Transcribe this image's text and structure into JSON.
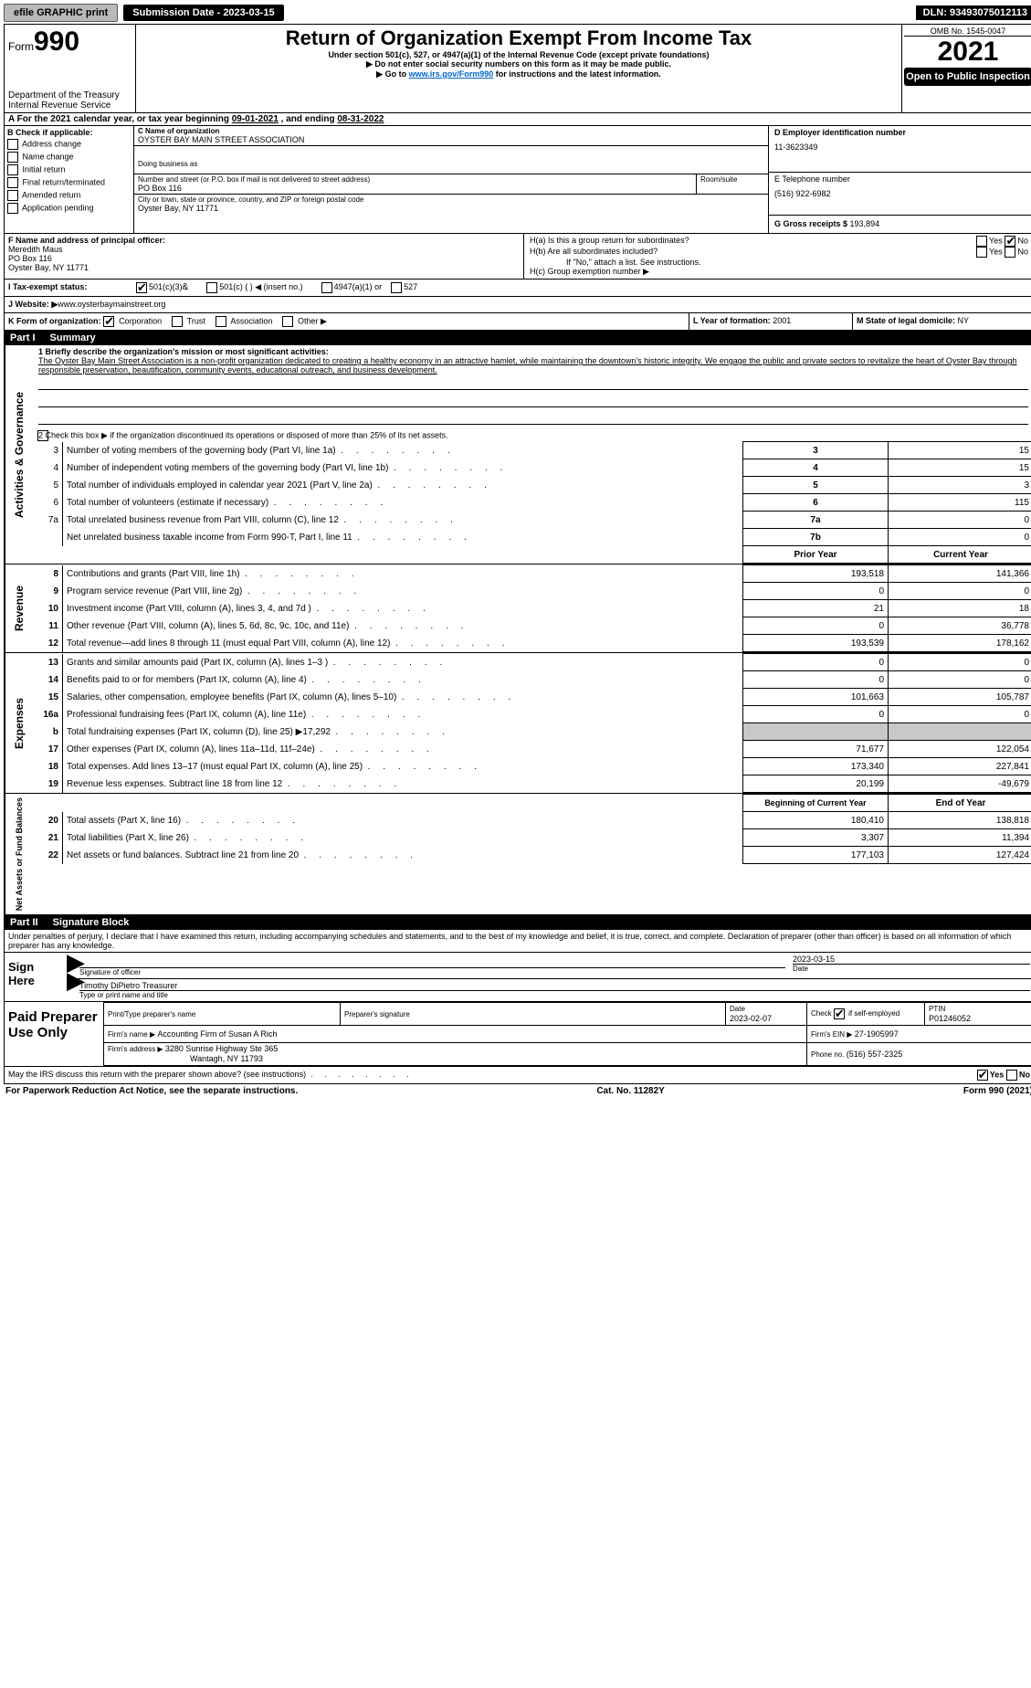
{
  "topbar": {
    "efile_label": "efile GRAPHIC print",
    "submission_label": "Submission Date - 2023-03-15",
    "dln_label": "DLN: 93493075012113"
  },
  "header": {
    "form_word": "Form",
    "form_num": "990",
    "dept": "Department of the Treasury",
    "irs": "Internal Revenue Service",
    "title": "Return of Organization Exempt From Income Tax",
    "sub1": "Under section 501(c), 527, or 4947(a)(1) of the Internal Revenue Code (except private foundations)",
    "sub2": "▶ Do not enter social security numbers on this form as it may be made public.",
    "sub3": "▶ Go to ",
    "sub3_link": "www.irs.gov/Form990",
    "sub3_tail": " for instructions and the latest information.",
    "omb": "OMB No. 1545-0047",
    "year": "2021",
    "open_pub": "Open to Public Inspection"
  },
  "periodA": {
    "label_a": "A For the 2021 calendar year, or tax year beginning ",
    "begin": "09-01-2021",
    "mid": "   , and ending ",
    "end": "08-31-2022"
  },
  "boxB": {
    "label": "B Check if applicable:",
    "items": [
      "Address change",
      "Name change",
      "Initial return",
      "Final return/terminated",
      "Amended return",
      "Application pending"
    ]
  },
  "boxC": {
    "label": "C Name of organization",
    "name": "OYSTER BAY MAIN STREET ASSOCIATION",
    "dba_label": "Doing business as",
    "street_label": "Number and street (or P.O. box if mail is not delivered to street address)",
    "room_label": "Room/suite",
    "street": "PO Box 116",
    "city_label": "City or town, state or province, country, and ZIP or foreign postal code",
    "city": "Oyster Bay, NY  11771"
  },
  "boxD": {
    "label": "D Employer identification number",
    "value": "11-3623349"
  },
  "boxE": {
    "label": "E Telephone number",
    "value": "(516) 922-6982"
  },
  "boxG": {
    "label": "G Gross receipts $ ",
    "value": "193,894"
  },
  "boxF": {
    "label": "F Name and address of principal officer:",
    "name": "Meredith Maus",
    "addr1": "PO Box 116",
    "addr2": "Oyster Bay, NY  11771"
  },
  "boxH": {
    "a_label": "H(a)  Is this a group return for subordinates?",
    "b_label": "H(b)  Are all subordinates included?",
    "note": "If \"No,\" attach a list. See instructions.",
    "c_label": "H(c)  Group exemption number ▶",
    "yes": "Yes",
    "no": "No"
  },
  "boxI": {
    "label": "I  Tax-exempt status:",
    "opt1": "501(c)(3)",
    "opt2": "501(c) (  ) ◀ (insert no.)",
    "opt3": "4947(a)(1) or",
    "opt4": "527"
  },
  "boxJ": {
    "label": "J  Website: ▶",
    "value": "  www.oysterbaymainstreet.org"
  },
  "boxK": {
    "label": "K Form of organization:",
    "opt1": "Corporation",
    "opt2": "Trust",
    "opt3": "Association",
    "opt4": "Other ▶"
  },
  "boxL": {
    "label": "L Year of formation: ",
    "value": "2001"
  },
  "boxM": {
    "label": "M State of legal domicile: ",
    "value": "NY"
  },
  "part1": {
    "hdr_num": "Part I",
    "hdr_txt": "Summary",
    "line1_label": "1  Briefly describe the organization's mission or most significant activities:",
    "mission": "The Oyster Bay Main Street Association is a non-profit organization dedicated to creating a healthy economy in an attractive hamlet, while maintaining the downtown's historic integrity. We engage the public and private sectors to revitalize the heart of Oyster Bay through responsible preservation, beautification, community events, educational outreach, and business development.",
    "line2": "2   Check this box ▶        if the organization discontinued its operations or disposed of more than 25% of its net assets.",
    "gov_rows": [
      {
        "n": "3",
        "t": "Number of voting members of the governing body (Part VI, line 1a)",
        "box": "3",
        "v": "15"
      },
      {
        "n": "4",
        "t": "Number of independent voting members of the governing body (Part VI, line 1b)",
        "box": "4",
        "v": "15"
      },
      {
        "n": "5",
        "t": "Total number of individuals employed in calendar year 2021 (Part V, line 2a)",
        "box": "5",
        "v": "3"
      },
      {
        "n": "6",
        "t": "Total number of volunteers (estimate if necessary)",
        "box": "6",
        "v": "115"
      },
      {
        "n": "7a",
        "t": "Total unrelated business revenue from Part VIII, column (C), line 12",
        "box": "7a",
        "v": "0"
      },
      {
        "n": "",
        "t": "Net unrelated business taxable income from Form 990-T, Part I, line 11",
        "box": "7b",
        "v": "0"
      }
    ],
    "col_prior": "Prior Year",
    "col_curr": "Current Year",
    "rev_rows": [
      {
        "n": "8",
        "t": "Contributions and grants (Part VIII, line 1h)",
        "p": "193,518",
        "c": "141,366"
      },
      {
        "n": "9",
        "t": "Program service revenue (Part VIII, line 2g)",
        "p": "0",
        "c": "0"
      },
      {
        "n": "10",
        "t": "Investment income (Part VIII, column (A), lines 3, 4, and 7d )",
        "p": "21",
        "c": "18"
      },
      {
        "n": "11",
        "t": "Other revenue (Part VIII, column (A), lines 5, 6d, 8c, 9c, 10c, and 11e)",
        "p": "0",
        "c": "36,778"
      },
      {
        "n": "12",
        "t": "Total revenue—add lines 8 through 11 (must equal Part VIII, column (A), line 12)",
        "p": "193,539",
        "c": "178,162"
      }
    ],
    "exp_rows": [
      {
        "n": "13",
        "t": "Grants and similar amounts paid (Part IX, column (A), lines 1–3 )",
        "p": "0",
        "c": "0"
      },
      {
        "n": "14",
        "t": "Benefits paid to or for members (Part IX, column (A), line 4)",
        "p": "0",
        "c": "0"
      },
      {
        "n": "15",
        "t": "Salaries, other compensation, employee benefits (Part IX, column (A), lines 5–10)",
        "p": "101,663",
        "c": "105,787"
      },
      {
        "n": "16a",
        "t": "Professional fundraising fees (Part IX, column (A), line 11e)",
        "p": "0",
        "c": "0"
      },
      {
        "n": "b",
        "t": "Total fundraising expenses (Part IX, column (D), line 25) ▶17,292",
        "p": "",
        "c": "",
        "grey": true
      },
      {
        "n": "17",
        "t": "Other expenses (Part IX, column (A), lines 11a–11d, 11f–24e)",
        "p": "71,677",
        "c": "122,054"
      },
      {
        "n": "18",
        "t": "Total expenses. Add lines 13–17 (must equal Part IX, column (A), line 25)",
        "p": "173,340",
        "c": "227,841"
      },
      {
        "n": "19",
        "t": "Revenue less expenses. Subtract line 18 from line 12",
        "p": "20,199",
        "c": "-49,679"
      }
    ],
    "col_begin": "Beginning of Current Year",
    "col_end": "End of Year",
    "net_rows": [
      {
        "n": "20",
        "t": "Total assets (Part X, line 16)",
        "p": "180,410",
        "c": "138,818"
      },
      {
        "n": "21",
        "t": "Total liabilities (Part X, line 26)",
        "p": "3,307",
        "c": "11,394"
      },
      {
        "n": "22",
        "t": "Net assets or fund balances. Subtract line 21 from line 20",
        "p": "177,103",
        "c": "127,424"
      }
    ],
    "vlabels": {
      "gov": "Activities & Governance",
      "rev": "Revenue",
      "exp": "Expenses",
      "net": "Net Assets or Fund Balances"
    }
  },
  "part2": {
    "hdr_num": "Part II",
    "hdr_txt": "Signature Block",
    "penalty": "Under penalties of perjury, I declare that I have examined this return, including accompanying schedules and statements, and to the best of my knowledge and belief, it is true, correct, and complete. Declaration of preparer (other than officer) is based on all information of which preparer has any knowledge.",
    "sign_here": "Sign Here",
    "sig_officer": "Signature of officer",
    "sig_date": "2023-03-15",
    "date_label": "Date",
    "typed_name": "Timothy DiPietro  Treasurer",
    "typed_label": "Type or print name and title",
    "paid_label": "Paid Preparer Use Only",
    "prep_name_label": "Print/Type preparer's name",
    "prep_sig_label": "Preparer's signature",
    "prep_date_label": "Date",
    "prep_date": "2023-02-07",
    "check_self": "Check          if self-employed",
    "ptin_label": "PTIN",
    "ptin": "P01246052",
    "firm_name_label": "Firm's name    ▶ ",
    "firm_name": "Accounting Firm of Susan A Rich",
    "firm_ein_label": "Firm's EIN ▶ ",
    "firm_ein": "27-1905997",
    "firm_addr_label": "Firm's address ▶ ",
    "firm_addr1": "3280 Sunrise Highway Ste 365",
    "firm_addr2": "Wantagh, NY  11793",
    "phone_label": "Phone no. ",
    "phone": "(516) 557-2325",
    "discuss": "May the IRS discuss this return with the preparer shown above? (see instructions)",
    "yes": "Yes",
    "no": "No"
  },
  "footer": {
    "left": "For Paperwork Reduction Act Notice, see the separate instructions.",
    "mid": "Cat. No. 11282Y",
    "right": "Form 990 (2021)"
  }
}
